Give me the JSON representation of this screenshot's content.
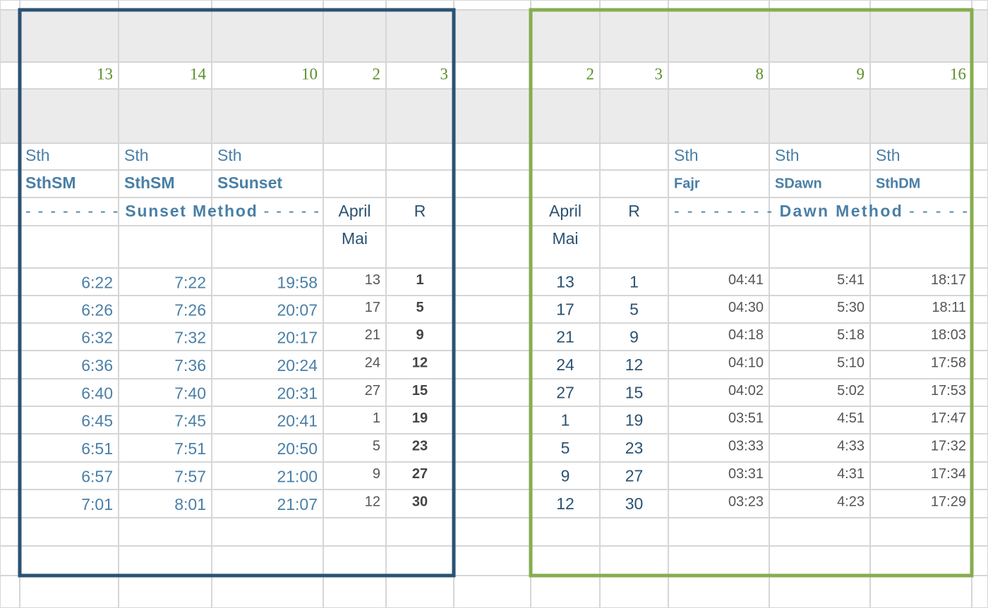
{
  "sunset_table": {
    "header_numbers": [
      13,
      14,
      10,
      2,
      3
    ],
    "prefixes": [
      "Sth",
      "Sth",
      "Sth"
    ],
    "names": [
      "SthSM",
      "SthSM",
      "SSunset"
    ],
    "method": {
      "lead": "- - - - - - - -",
      "title": "Sunset Method",
      "trail": "- - - - -"
    },
    "month_header": "April",
    "r_header": "R",
    "month2_header": "Mai",
    "rows": [
      [
        "6:22",
        "7:22",
        "19:58",
        13,
        1
      ],
      [
        "6:26",
        "7:26",
        "20:07",
        17,
        5
      ],
      [
        "6:32",
        "7:32",
        "20:17",
        21,
        9
      ],
      [
        "6:36",
        "7:36",
        "20:24",
        24,
        12
      ],
      [
        "6:40",
        "7:40",
        "20:31",
        27,
        15
      ],
      [
        "6:45",
        "7:45",
        "20:41",
        1,
        19
      ],
      [
        "6:51",
        "7:51",
        "20:50",
        5,
        23
      ],
      [
        "6:57",
        "7:57",
        "21:00",
        9,
        27
      ],
      [
        "7:01",
        "8:01",
        "21:07",
        12,
        30
      ]
    ]
  },
  "dawn_table": {
    "header_numbers": [
      2,
      3,
      8,
      9,
      16
    ],
    "prefixes": [
      "Sth",
      "Sth",
      "Sth"
    ],
    "names": [
      "Fajr",
      "SDawn",
      "SthDM"
    ],
    "method": {
      "lead": "- - - - - - - -",
      "title": "Dawn Method",
      "trail": "- - - - -"
    },
    "month_header": "April",
    "r_header": "R",
    "month2_header": "Mai",
    "rows": [
      [
        13,
        1,
        "04:41",
        "5:41",
        "18:17"
      ],
      [
        17,
        5,
        "04:30",
        "5:30",
        "18:11"
      ],
      [
        21,
        9,
        "04:18",
        "5:18",
        "18:03"
      ],
      [
        24,
        12,
        "04:10",
        "5:10",
        "17:58"
      ],
      [
        27,
        15,
        "04:02",
        "5:02",
        "17:53"
      ],
      [
        1,
        19,
        "03:51",
        "4:51",
        "17:47"
      ],
      [
        5,
        23,
        "03:33",
        "4:33",
        "17:32"
      ],
      [
        9,
        27,
        "03:31",
        "4:31",
        "17:34"
      ],
      [
        12,
        30,
        "03:23",
        "4:23",
        "17:29"
      ]
    ]
  }
}
